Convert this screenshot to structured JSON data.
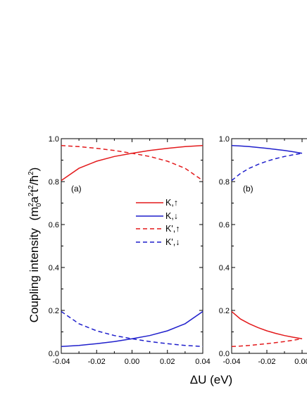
{
  "chart_data": {
    "type": "line",
    "ylabel": "Coupling intensity",
    "ylabel_units": "(m",
    "ylabel_units_sub": "0",
    "ylabel_units_sup1": "2",
    "ylabel_units_a": "a",
    "ylabel_units_sup2": "2",
    "ylabel_units_t": "t",
    "ylabel_units_sup3": "2",
    "ylabel_units_h": "/ħ",
    "ylabel_units_sup4": "2",
    "ylabel_units_close": ")",
    "xlabel": "ΔU (eV)",
    "xlim": [
      -0.04,
      0.04
    ],
    "ylim": [
      0.0,
      1.0
    ],
    "xticks": [
      "-0.04",
      "-0.02",
      "0.00",
      "0.02",
      "0.04"
    ],
    "yticks": [
      "0.0",
      "0.2",
      "0.4",
      "0.6",
      "0.8",
      "1.0"
    ],
    "legend": {
      "placement": "upper-right of panel (a)",
      "entries": [
        {
          "label": "K,↑",
          "color": "#e31a1c",
          "dash": "solid"
        },
        {
          "label": "K,↓",
          "color": "#1f1fcc",
          "dash": "solid"
        },
        {
          "label": "K',↑",
          "color": "#e31a1c",
          "dash": "dashed"
        },
        {
          "label": "K',↓",
          "color": "#1f1fcc",
          "dash": "dashed"
        }
      ]
    },
    "panels": [
      {
        "label": "(a)",
        "series": [
          {
            "name": "K,↑",
            "color": "#e31a1c",
            "dash": "solid",
            "x": [
              -0.04,
              -0.03,
              -0.02,
              -0.01,
              0.0,
              0.01,
              0.02,
              0.03,
              0.04
            ],
            "y": [
              0.805,
              0.862,
              0.895,
              0.917,
              0.932,
              0.945,
              0.955,
              0.963,
              0.968
            ]
          },
          {
            "name": "K,↓",
            "color": "#1f1fcc",
            "dash": "solid",
            "x": [
              -0.04,
              -0.03,
              -0.02,
              -0.01,
              0.0,
              0.01,
              0.02,
              0.03,
              0.04
            ],
            "y": [
              0.032,
              0.037,
              0.045,
              0.055,
              0.068,
              0.083,
              0.105,
              0.138,
              0.195
            ]
          },
          {
            "name": "K',↑",
            "color": "#e31a1c",
            "dash": "dashed",
            "x": [
              -0.04,
              -0.03,
              -0.02,
              -0.01,
              0.0,
              0.01,
              0.02,
              0.03,
              0.04
            ],
            "y": [
              0.968,
              0.963,
              0.955,
              0.945,
              0.932,
              0.917,
              0.895,
              0.862,
              0.805
            ]
          },
          {
            "name": "K',↓",
            "color": "#1f1fcc",
            "dash": "dashed",
            "x": [
              -0.04,
              -0.03,
              -0.02,
              -0.01,
              0.0,
              0.01,
              0.02,
              0.03,
              0.04
            ],
            "y": [
              0.195,
              0.138,
              0.105,
              0.083,
              0.068,
              0.055,
              0.045,
              0.037,
              0.032
            ]
          }
        ]
      },
      {
        "label": "(b)",
        "series": [
          {
            "name": "K,↑",
            "color": "#e31a1c",
            "dash": "solid",
            "x": [
              -0.04,
              -0.035,
              -0.03,
              -0.025,
              -0.02,
              -0.015,
              -0.01,
              -0.005,
              0.0
            ],
            "y": [
              0.195,
              0.16,
              0.138,
              0.12,
              0.105,
              0.093,
              0.083,
              0.075,
              0.068
            ]
          },
          {
            "name": "K,↓",
            "color": "#1f1fcc",
            "dash": "solid",
            "x": [
              -0.04,
              -0.035,
              -0.03,
              -0.025,
              -0.02,
              -0.015,
              -0.01,
              -0.005,
              0.0
            ],
            "y": [
              0.968,
              0.966,
              0.963,
              0.959,
              0.955,
              0.95,
              0.945,
              0.939,
              0.932
            ]
          },
          {
            "name": "K',↑",
            "color": "#e31a1c",
            "dash": "dashed",
            "x": [
              -0.04,
              -0.035,
              -0.03,
              -0.025,
              -0.02,
              -0.015,
              -0.01,
              -0.005,
              0.0
            ],
            "y": [
              0.032,
              0.034,
              0.037,
              0.041,
              0.045,
              0.05,
              0.055,
              0.061,
              0.068
            ]
          },
          {
            "name": "K',↓",
            "color": "#1f1fcc",
            "dash": "dashed",
            "x": [
              -0.04,
              -0.035,
              -0.03,
              -0.025,
              -0.02,
              -0.015,
              -0.01,
              -0.005,
              0.0
            ],
            "y": [
              0.805,
              0.838,
              0.862,
              0.88,
              0.895,
              0.907,
              0.917,
              0.925,
              0.932
            ]
          }
        ]
      }
    ]
  }
}
